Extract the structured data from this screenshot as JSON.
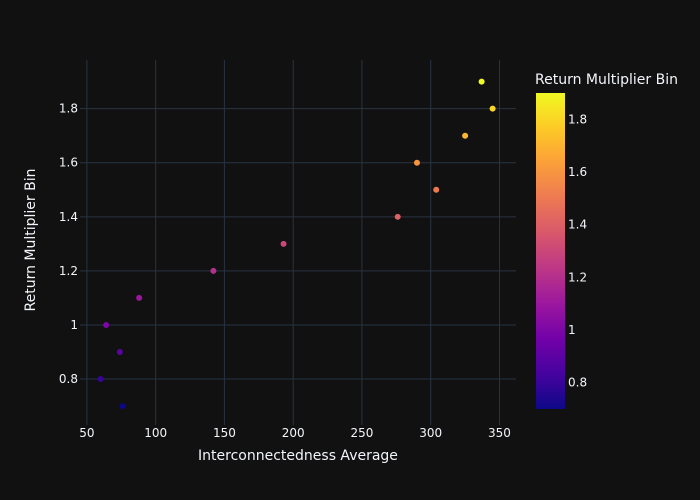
{
  "chart_data": {
    "type": "scatter",
    "xlabel": "Interconnectedness Average",
    "ylabel": "Return Multiplier Bin",
    "xlim": [
      45,
      362
    ],
    "ylim": [
      0.63,
      1.98
    ],
    "x_ticks": [
      50,
      100,
      150,
      200,
      250,
      300,
      350
    ],
    "y_ticks": [
      0.8,
      1,
      1.2,
      1.4,
      1.6,
      1.8
    ],
    "x_tick_labels": [
      "50",
      "100",
      "150",
      "200",
      "250",
      "300",
      "350"
    ],
    "y_tick_labels": [
      "0.8",
      "1",
      "1.2",
      "1.4",
      "1.6",
      "1.8"
    ],
    "grid": true,
    "colorbar": {
      "title": "Return Multiplier Bin",
      "range": [
        0.7,
        1.9
      ],
      "ticks": [
        0.8,
        1,
        1.2,
        1.4,
        1.6,
        1.8
      ],
      "tick_labels": [
        "0.8",
        "1",
        "1.2",
        "1.4",
        "1.6",
        "1.8"
      ],
      "colorscale": [
        "#0d0887",
        "#46039f",
        "#7201a8",
        "#9c179e",
        "#bd3786",
        "#d8576b",
        "#ed7953",
        "#fb9f3a",
        "#fdca26",
        "#f0f921"
      ]
    },
    "points": [
      {
        "x": 76,
        "y": 0.7
      },
      {
        "x": 60,
        "y": 0.8
      },
      {
        "x": 74,
        "y": 0.9
      },
      {
        "x": 64,
        "y": 1.0
      },
      {
        "x": 88,
        "y": 1.1
      },
      {
        "x": 142,
        "y": 1.2
      },
      {
        "x": 193,
        "y": 1.3
      },
      {
        "x": 276,
        "y": 1.4
      },
      {
        "x": 304,
        "y": 1.5
      },
      {
        "x": 290,
        "y": 1.6
      },
      {
        "x": 325,
        "y": 1.7
      },
      {
        "x": 345,
        "y": 1.8
      },
      {
        "x": 337,
        "y": 1.9
      }
    ]
  }
}
